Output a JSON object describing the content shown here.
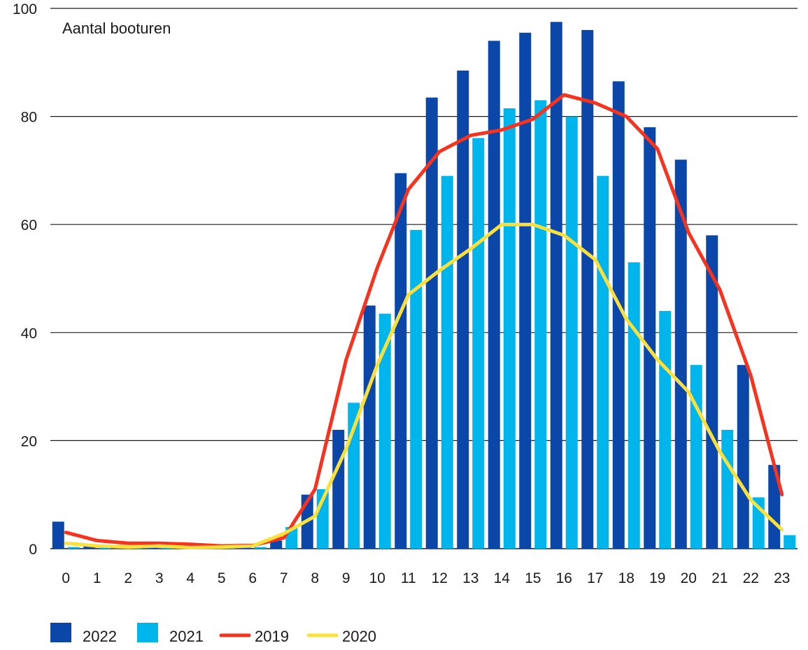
{
  "chart_data": {
    "type": "bar",
    "title": "Aantal booturen",
    "xlabel": "",
    "ylabel": "",
    "categories": [
      "0",
      "1",
      "2",
      "3",
      "4",
      "5",
      "6",
      "7",
      "8",
      "9",
      "10",
      "11",
      "12",
      "13",
      "14",
      "15",
      "16",
      "17",
      "18",
      "19",
      "20",
      "21",
      "22",
      "23"
    ],
    "ylim": [
      0,
      100
    ],
    "yticks": [
      "0",
      "20",
      "40",
      "60",
      "80",
      "100"
    ],
    "grid": true,
    "legend_position": "bottom",
    "series": [
      {
        "name": "2022",
        "type": "bar",
        "color": "#0a47a9",
        "values": [
          5,
          0.5,
          0.3,
          0.3,
          0.3,
          0.3,
          0.5,
          1.5,
          10,
          22,
          45,
          69.5,
          83.5,
          88.5,
          94,
          95.5,
          97.5,
          96,
          86.5,
          78,
          72,
          58,
          34,
          15.5
        ]
      },
      {
        "name": "2021",
        "type": "bar",
        "color": "#00b4ec",
        "values": [
          0.3,
          0.2,
          0.1,
          0.1,
          0.1,
          0.1,
          0.3,
          4,
          11,
          27,
          43.5,
          59,
          69,
          76,
          81.5,
          83,
          80,
          69,
          53,
          44,
          34,
          22,
          9.5,
          2.5
        ]
      },
      {
        "name": "2019",
        "type": "line",
        "color": "#f5331e",
        "values": [
          3,
          1.5,
          1,
          1,
          0.8,
          0.5,
          0.6,
          2,
          11,
          35,
          52,
          66.5,
          73.5,
          76.5,
          77.5,
          79.5,
          84,
          82.5,
          80,
          74,
          58.5,
          48,
          32,
          10
        ]
      },
      {
        "name": "2020",
        "type": "line",
        "color": "#fbe03c",
        "values": [
          1,
          0.5,
          0.3,
          0.5,
          0.2,
          0.3,
          0.5,
          2.8,
          6,
          18.5,
          34,
          47,
          51.5,
          55.5,
          60,
          60,
          58,
          53.5,
          42.5,
          35,
          29,
          18,
          9,
          3.5
        ]
      }
    ]
  }
}
